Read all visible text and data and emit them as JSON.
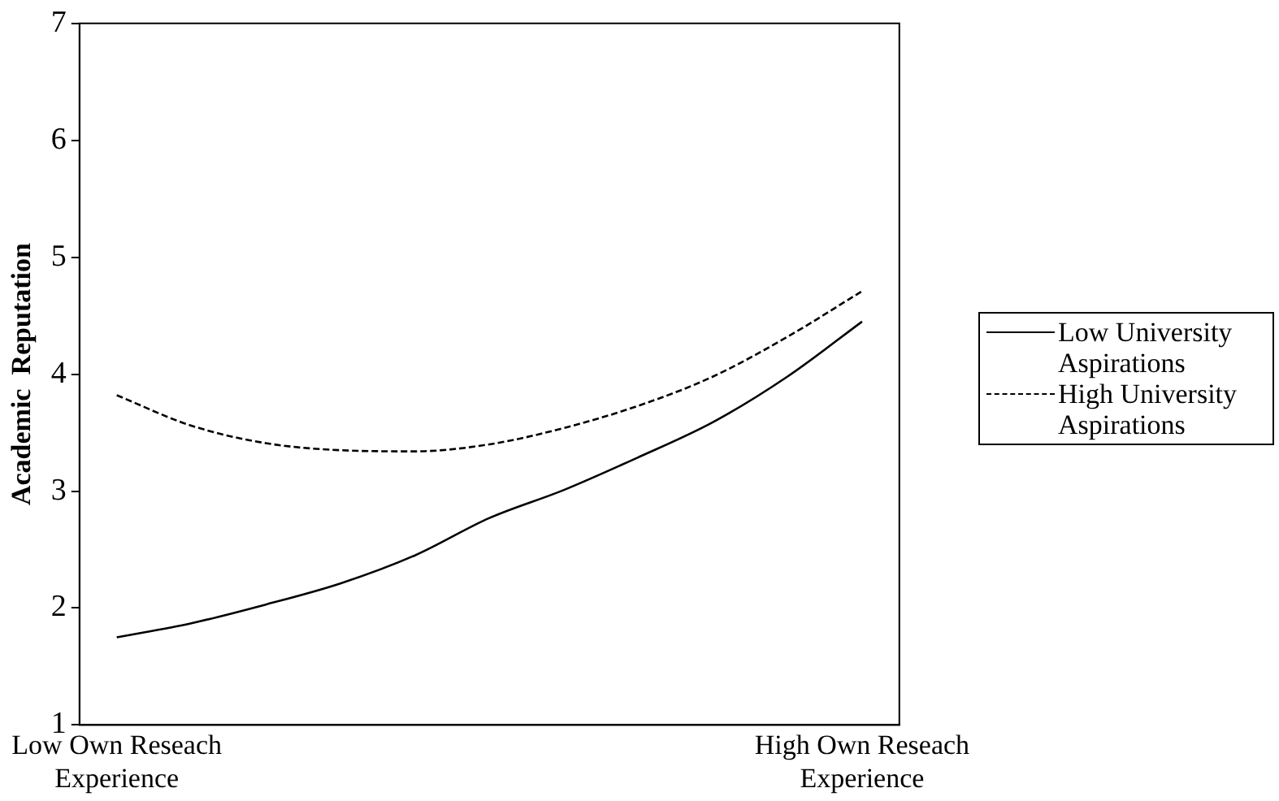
{
  "chart_data": {
    "type": "line",
    "ylabel": "Academic  Reputation",
    "categories": [
      "Low Own Reseach Experience",
      null,
      null,
      null,
      null,
      null,
      null,
      null,
      null,
      null,
      "High Own Reseach Experience"
    ],
    "series": [
      {
        "name": "Low University Aspirations",
        "color": "#000000",
        "line_style": "solid",
        "values": [
          1.75,
          1.87,
          2.03,
          2.21,
          2.45,
          2.77,
          3.01,
          3.29,
          3.59,
          3.98,
          4.45
        ]
      },
      {
        "name": "High University Aspirations",
        "color": "#000000",
        "line_style": "dashed",
        "values": [
          3.82,
          3.56,
          3.41,
          3.35,
          3.34,
          3.4,
          3.54,
          3.73,
          3.98,
          4.32,
          4.71
        ]
      }
    ],
    "ylim": [
      1,
      7
    ],
    "yticks": [
      1,
      2,
      3,
      4,
      5,
      6,
      7
    ],
    "grid": false,
    "legend": "right",
    "marker": "none"
  }
}
